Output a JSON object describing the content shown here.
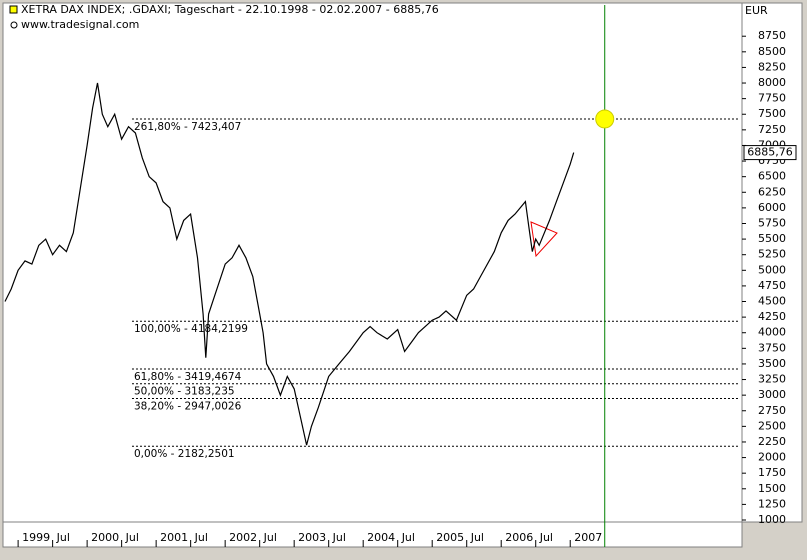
{
  "chart_data": {
    "type": "line",
    "title": "XETRA DAX INDEX; .GDAXI; Tageschart - 22.10.1998 - 02.02.2007 - 6885,76",
    "subtitle": "www.tradesignal.com",
    "y_axis_label": "EUR",
    "color": "#000000",
    "x": [
      1998.81,
      1998.9,
      1999.0,
      1999.1,
      1999.2,
      1999.3,
      1999.4,
      1999.5,
      1999.6,
      1999.7,
      1999.8,
      1999.9,
      2000.0,
      2000.08,
      2000.15,
      2000.22,
      2000.3,
      2000.4,
      2000.5,
      2000.6,
      2000.7,
      2000.8,
      2000.9,
      2001.0,
      2001.1,
      2001.2,
      2001.3,
      2001.4,
      2001.5,
      2001.6,
      2001.68,
      2001.72,
      2001.76,
      2001.85,
      2002.0,
      2002.1,
      2002.2,
      2002.3,
      2002.4,
      2002.5,
      2002.55,
      2002.6,
      2002.7,
      2002.8,
      2002.9,
      2003.0,
      2003.1,
      2003.18,
      2003.25,
      2003.35,
      2003.5,
      2003.65,
      2003.8,
      2004.0,
      2004.1,
      2004.2,
      2004.35,
      2004.5,
      2004.6,
      2004.7,
      2004.8,
      2005.0,
      2005.1,
      2005.2,
      2005.35,
      2005.5,
      2005.6,
      2005.7,
      2005.9,
      2006.0,
      2006.1,
      2006.2,
      2006.35,
      2006.4,
      2006.45,
      2006.5,
      2006.55,
      2006.7,
      2006.8,
      2006.9,
      2007.0,
      2007.05
    ],
    "values": [
      4500,
      4700,
      5000,
      5150,
      5100,
      5400,
      5500,
      5250,
      5400,
      5300,
      5600,
      6300,
      7000,
      7600,
      8000,
      7500,
      7300,
      7500,
      7100,
      7300,
      7200,
      6800,
      6500,
      6400,
      6100,
      6000,
      5500,
      5800,
      5900,
      5200,
      4300,
      3600,
      4300,
      4600,
      5100,
      5200,
      5400,
      5200,
      4900,
      4300,
      4000,
      3500,
      3300,
      3000,
      3300,
      3100,
      2600,
      2200,
      2500,
      2800,
      3300,
      3500,
      3700,
      4000,
      4100,
      4000,
      3900,
      4050,
      3700,
      3850,
      4000,
      4200,
      4250,
      4350,
      4200,
      4600,
      4700,
      4900,
      5300,
      5600,
      5800,
      5900,
      6100,
      5700,
      5300,
      5500,
      5400,
      5800,
      6100,
      6400,
      6700,
      6885.76
    ],
    "last_value_label": "6885,76",
    "xlim": [
      1998.81,
      2009.46
    ],
    "ylim": [
      1000,
      9250
    ],
    "yticks": [
      1000,
      1250,
      1500,
      1750,
      2000,
      2250,
      2500,
      2750,
      3000,
      3250,
      3500,
      3750,
      4000,
      4250,
      4500,
      4750,
      5000,
      5250,
      5500,
      5750,
      6000,
      6250,
      6500,
      6750,
      7000,
      7250,
      7500,
      7750,
      8000,
      8250,
      8500,
      8750
    ],
    "xticks": [
      {
        "value": 1999.0,
        "label": "1999"
      },
      {
        "value": 1999.5,
        "label": "Jul"
      },
      {
        "value": 2000.0,
        "label": "2000"
      },
      {
        "value": 2000.5,
        "label": "Jul"
      },
      {
        "value": 2001.0,
        "label": "2001"
      },
      {
        "value": 2001.5,
        "label": "Jul"
      },
      {
        "value": 2002.0,
        "label": "2002"
      },
      {
        "value": 2002.5,
        "label": "Jul"
      },
      {
        "value": 2003.0,
        "label": "2003"
      },
      {
        "value": 2003.5,
        "label": "Jul"
      },
      {
        "value": 2004.0,
        "label": "2004"
      },
      {
        "value": 2004.5,
        "label": "Jul"
      },
      {
        "value": 2005.0,
        "label": "2005"
      },
      {
        "value": 2005.5,
        "label": "Jul"
      },
      {
        "value": 2006.0,
        "label": "2006"
      },
      {
        "value": 2006.5,
        "label": "Jul"
      },
      {
        "value": 2007.0,
        "label": "2007"
      }
    ],
    "fib_levels": [
      {
        "value": 7423.407,
        "label": "261,80% - 7423,407"
      },
      {
        "value": 4184.2199,
        "label": "100,00% - 4184,2199"
      },
      {
        "value": 3419.4674,
        "label": "61,80% - 3419,4674"
      },
      {
        "value": 3183.235,
        "label": "50,00% - 3183,235"
      },
      {
        "value": 2947.0026,
        "label": "38,20% - 2947,0026"
      },
      {
        "value": 2182.2501,
        "label": "0,00% - 2182,2501"
      }
    ],
    "fib_start_x": 2000.65,
    "vertical_line": {
      "x": 2007.5,
      "color": "#008000"
    }
  }
}
